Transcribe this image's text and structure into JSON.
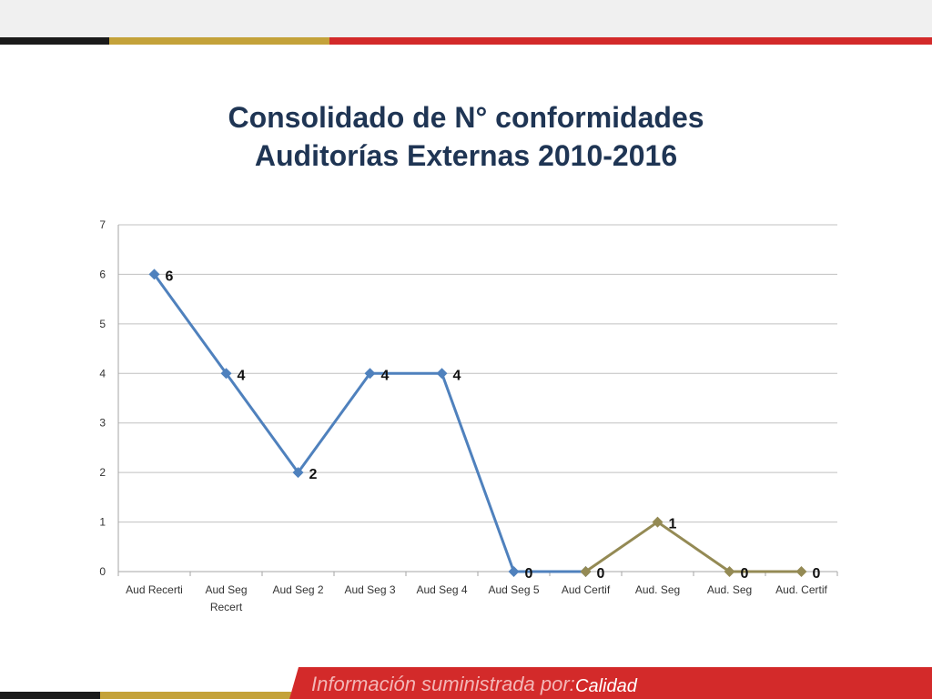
{
  "slide": {
    "title_line1": "Consolidado de N° conformidades",
    "title_line2": "Auditorías Externas 2010-2016",
    "footer_label": "Información suministrada por:",
    "footer_value": "Calidad"
  },
  "colors": {
    "title": "#1f3554",
    "series_blue": "#4f81bd",
    "series_olive": "#948a54",
    "grid": "#c0c0c0",
    "stripe_black": "#1a1a1a",
    "stripe_gold": "#c4a23a",
    "stripe_red": "#d32a2a"
  },
  "chart_data": {
    "type": "line",
    "categories": [
      "Aud Recerti",
      "Aud Seg Recert",
      "Aud Seg 2",
      "Aud Seg 3",
      "Aud  Seg 4",
      "Aud Seg 5",
      "Aud Certif",
      "Aud. Seg",
      "Aud. Seg",
      "Aud. Certif"
    ],
    "category_lines": [
      [
        "Aud Recerti"
      ],
      [
        "Aud Seg",
        "Recert"
      ],
      [
        "Aud Seg 2"
      ],
      [
        "Aud Seg 3"
      ],
      [
        "Aud  Seg 4"
      ],
      [
        "Aud Seg 5"
      ],
      [
        "Aud Certif"
      ],
      [
        "Aud. Seg"
      ],
      [
        "Aud. Seg"
      ],
      [
        "Aud. Certif"
      ]
    ],
    "series": [
      {
        "color": "#4f81bd",
        "values": [
          6,
          4,
          2,
          4,
          4,
          0,
          0,
          null,
          null,
          null
        ]
      },
      {
        "color": "#948a54",
        "values": [
          null,
          null,
          null,
          null,
          null,
          null,
          0,
          1,
          0,
          0
        ]
      }
    ],
    "data_labels": [
      {
        "index": 0,
        "text": "6"
      },
      {
        "index": 1,
        "text": "4"
      },
      {
        "index": 2,
        "text": "2"
      },
      {
        "index": 3,
        "text": "4"
      },
      {
        "index": 4,
        "text": "4"
      },
      {
        "index": 5,
        "text": "0"
      },
      {
        "index": 6,
        "text": "0"
      },
      {
        "index": 7,
        "text": "1"
      },
      {
        "index": 8,
        "text": "0"
      },
      {
        "index": 9,
        "text": "0"
      }
    ],
    "label_values": [
      6,
      4,
      2,
      4,
      4,
      0,
      0,
      1,
      0,
      0
    ],
    "yticks": [
      "0",
      "1",
      "2",
      "3",
      "4",
      "5",
      "6",
      "7"
    ],
    "ylim": [
      0,
      7
    ],
    "grid": true,
    "legend": "none"
  }
}
